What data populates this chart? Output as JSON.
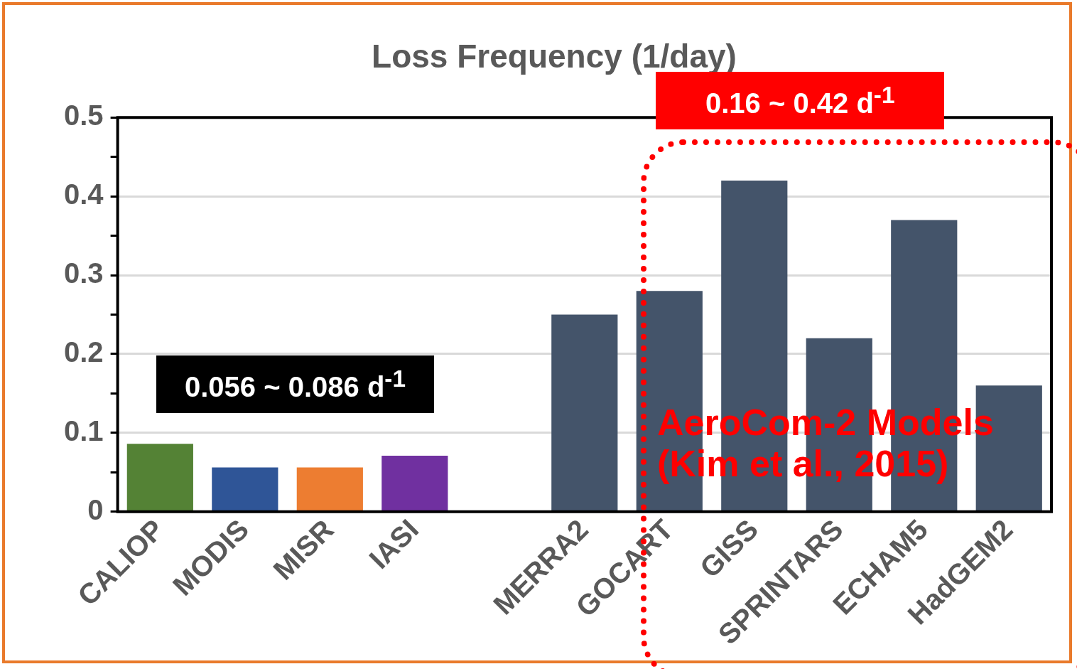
{
  "chart_data": {
    "type": "bar",
    "title": "Loss Frequency (1/day)",
    "categories": [
      "CALIOP",
      "MODIS",
      "MISR",
      "IASI",
      null,
      "MERRA2",
      "GOCART",
      "GISS",
      "SPRINTARS",
      "ECHAM5",
      "HadGEM2"
    ],
    "values": [
      0.086,
      0.056,
      0.056,
      0.071,
      null,
      0.25,
      0.28,
      0.42,
      0.22,
      0.37,
      0.16
    ],
    "colors": [
      "#548235",
      "#2f5597",
      "#ed7d31",
      "#7030a0",
      "#44546a",
      "#44546a",
      "#44546a",
      "#44546a",
      "#44546a",
      "#44546a",
      "#44546a"
    ],
    "ylim": [
      0,
      0.5
    ],
    "yticks": [
      0,
      {
        "value": 0.05,
        "label": null
      },
      0.1,
      {
        "value": 0.15,
        "label": null
      },
      0.2,
      {
        "value": 0.25,
        "label": null
      },
      0.3,
      {
        "value": 0.35,
        "label": null
      },
      0.4,
      {
        "value": 0.45,
        "label": null
      },
      0.5
    ],
    "grid": "y",
    "legend": false,
    "annotations": [
      "0.056 ~ 0.086 d$^{-1}$",
      "0.16 ~ 0.42 d$^{-1}$",
      "AeroCom-2 Models (Kim et al., 2015)"
    ]
  }
}
